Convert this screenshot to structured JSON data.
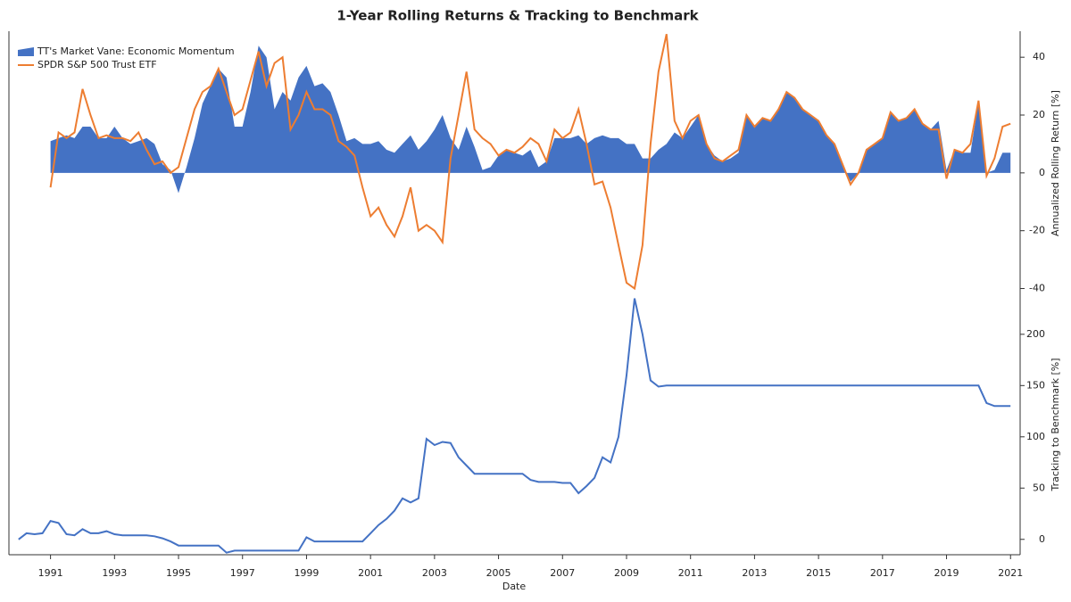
{
  "chart_data": [
    {
      "type": "area",
      "title": "1-Year Rolling Returns & Tracking to Benchmark",
      "ylabel": "Annualized Rolling Return [%]",
      "legend": "upper left",
      "x": [
        1991,
        1991.25,
        1991.5,
        1991.75,
        1992,
        1992.25,
        1992.5,
        1992.75,
        1993,
        1993.25,
        1993.5,
        1993.75,
        1994,
        1994.25,
        1994.5,
        1994.75,
        1995,
        1995.25,
        1995.5,
        1995.75,
        1996,
        1996.25,
        1996.5,
        1996.75,
        1997,
        1997.25,
        1997.5,
        1997.75,
        1998,
        1998.25,
        1998.5,
        1998.75,
        1999,
        1999.25,
        1999.5,
        1999.75,
        2000,
        2000.25,
        2000.5,
        2000.75,
        2001,
        2001.25,
        2001.5,
        2001.75,
        2002,
        2002.25,
        2002.5,
        2002.75,
        2003,
        2003.25,
        2003.5,
        2003.75,
        2004,
        2004.25,
        2004.5,
        2004.75,
        2005,
        2005.25,
        2005.5,
        2005.75,
        2006,
        2006.25,
        2006.5,
        2006.75,
        2007,
        2007.25,
        2007.5,
        2007.75,
        2008,
        2008.25,
        2008.5,
        2008.75,
        2009,
        2009.25,
        2009.5,
        2009.75,
        2010,
        2010.25,
        2010.5,
        2010.75,
        2011,
        2011.25,
        2011.5,
        2011.75,
        2012,
        2012.25,
        2012.5,
        2012.75,
        2013,
        2013.25,
        2013.5,
        2013.75,
        2014,
        2014.25,
        2014.5,
        2014.75,
        2015,
        2015.25,
        2015.5,
        2015.75,
        2016,
        2016.25,
        2016.5,
        2016.75,
        2017,
        2017.25,
        2017.5,
        2017.75,
        2018,
        2018.25,
        2018.5,
        2018.75,
        2019,
        2019.25,
        2019.5,
        2019.75,
        2020,
        2020.25,
        2020.5,
        2020.75,
        2021
      ],
      "series": [
        {
          "name": "TT's Market Vane: Economic Momentum",
          "style": "area",
          "color": "#4472c4",
          "values": [
            11,
            12,
            13,
            12,
            16,
            16,
            12,
            12,
            16,
            12,
            10,
            11,
            12,
            10,
            3,
            1,
            -7,
            2,
            12,
            24,
            30,
            36,
            33,
            16,
            16,
            28,
            44,
            40,
            22,
            28,
            25,
            33,
            37,
            30,
            31,
            28,
            20,
            11,
            12,
            10,
            10,
            11,
            8,
            7,
            10,
            13,
            8,
            11,
            15,
            20,
            12,
            8,
            16,
            9,
            1,
            2,
            6,
            8,
            7,
            6,
            8,
            2,
            4,
            12,
            12,
            12,
            13,
            10,
            12,
            13,
            12,
            12,
            10,
            10,
            5,
            5,
            8,
            10,
            14,
            12,
            16,
            20,
            10,
            6,
            4,
            5,
            7,
            20,
            16,
            19,
            18,
            22,
            28,
            26,
            22,
            20,
            18,
            13,
            10,
            3,
            -3,
            0,
            8,
            10,
            12,
            21,
            18,
            19,
            22,
            17,
            15,
            18,
            1,
            8,
            7,
            7,
            25,
            0,
            1,
            7,
            7
          ]
        },
        {
          "name": "SPDR S&P 500 Trust ETF",
          "style": "line",
          "color": "#ed7d31",
          "values": [
            -5,
            14,
            12,
            14,
            29,
            20,
            12,
            13,
            12,
            12,
            11,
            14,
            8,
            3,
            4,
            0,
            2,
            12,
            22,
            28,
            30,
            36,
            28,
            20,
            22,
            32,
            42,
            30,
            38,
            40,
            15,
            20,
            28,
            22,
            22,
            20,
            11,
            9,
            6,
            -5,
            -15,
            -12,
            -18,
            -22,
            -15,
            -5,
            -20,
            -18,
            -20,
            -24,
            5,
            20,
            35,
            15,
            12,
            10,
            6,
            8,
            7,
            9,
            12,
            10,
            4,
            15,
            12,
            14,
            22,
            10,
            -4,
            -3,
            -12,
            -25,
            -38,
            -40,
            -25,
            10,
            35,
            48,
            18,
            12,
            18,
            20,
            10,
            5,
            4,
            6,
            8,
            20,
            16,
            19,
            18,
            22,
            28,
            26,
            22,
            20,
            18,
            13,
            10,
            3,
            -4,
            0,
            8,
            10,
            12,
            21,
            18,
            19,
            22,
            17,
            15,
            15,
            -2,
            8,
            7,
            10,
            25,
            -1,
            5,
            16,
            17
          ]
        }
      ],
      "xlim": [
        1989.7,
        2021.3
      ],
      "ylim": [
        -42,
        49
      ],
      "yticks": [
        -40,
        -20,
        0,
        20,
        40
      ]
    },
    {
      "type": "line",
      "xlabel": "Date",
      "ylabel": "Tracking to Benchmark [%]",
      "x": [
        1990,
        1990.25,
        1990.5,
        1990.75,
        1991,
        1991.25,
        1991.5,
        1991.75,
        1992,
        1992.25,
        1992.5,
        1992.75,
        1993,
        1993.25,
        1993.5,
        1993.75,
        1994,
        1994.25,
        1994.5,
        1994.75,
        1995,
        1995.25,
        1995.5,
        1995.75,
        1996,
        1996.25,
        1996.5,
        1996.75,
        1997,
        1997.25,
        1997.5,
        1997.75,
        1998,
        1998.25,
        1998.5,
        1998.75,
        1999,
        1999.25,
        1999.5,
        1999.75,
        2000,
        2000.25,
        2000.5,
        2000.75,
        2001,
        2001.25,
        2001.5,
        2001.75,
        2002,
        2002.25,
        2002.5,
        2002.75,
        2003,
        2003.25,
        2003.5,
        2003.75,
        2004,
        2004.25,
        2004.5,
        2004.75,
        2005,
        2005.25,
        2005.5,
        2005.75,
        2006,
        2006.25,
        2006.5,
        2006.75,
        2007,
        2007.25,
        2007.5,
        2007.75,
        2008,
        2008.25,
        2008.5,
        2008.75,
        2009,
        2009.25,
        2009.5,
        2009.75,
        2010,
        2010.25,
        2010.5,
        2010.75,
        2011,
        2011.25,
        2011.5,
        2011.75,
        2012,
        2012.25,
        2012.5,
        2012.75,
        2013,
        2013.25,
        2013.5,
        2013.75,
        2014,
        2014.25,
        2014.5,
        2014.75,
        2015,
        2015.25,
        2015.5,
        2015.75,
        2016,
        2016.25,
        2016.5,
        2016.75,
        2017,
        2017.25,
        2017.5,
        2017.75,
        2018,
        2018.25,
        2018.5,
        2018.75,
        2019,
        2019.25,
        2019.5,
        2019.75,
        2020,
        2020.25,
        2020.5,
        2020.75,
        2021
      ],
      "series": [
        {
          "color": "#4472c4",
          "values": [
            0,
            6,
            5,
            6,
            18,
            16,
            5,
            4,
            10,
            6,
            6,
            8,
            5,
            4,
            4,
            4,
            4,
            3,
            1,
            -2,
            -6,
            -6,
            -6,
            -6,
            -6,
            -6,
            -13,
            -11,
            -11,
            -11,
            -11,
            -11,
            -11,
            -11,
            -11,
            -11,
            2,
            -2,
            -2,
            -2,
            -2,
            -2,
            -2,
            -2,
            6,
            14,
            20,
            28,
            40,
            36,
            40,
            98,
            92,
            95,
            94,
            80,
            72,
            64,
            64,
            64,
            64,
            64,
            64,
            64,
            58,
            56,
            56,
            56,
            55,
            55,
            45,
            52,
            60,
            80,
            75,
            100,
            160,
            235,
            200,
            155,
            149,
            150,
            150,
            150,
            150,
            150,
            150,
            150,
            150,
            150,
            150,
            150,
            150,
            150,
            150,
            150,
            150,
            150,
            150,
            150,
            150,
            150,
            150,
            150,
            150,
            150,
            150,
            150,
            150,
            150,
            150,
            150,
            150,
            150,
            150,
            150,
            150,
            150,
            150,
            150,
            150,
            133,
            130,
            130,
            130
          ]
        }
      ],
      "xlim": [
        1989.7,
        2021.3
      ],
      "ylim": [
        -15,
        239
      ],
      "yticks": [
        0,
        50,
        100,
        150,
        200
      ],
      "xticks": [
        1991,
        1993,
        1995,
        1997,
        1999,
        2001,
        2003,
        2005,
        2007,
        2009,
        2011,
        2013,
        2015,
        2017,
        2019,
        2021
      ]
    }
  ]
}
